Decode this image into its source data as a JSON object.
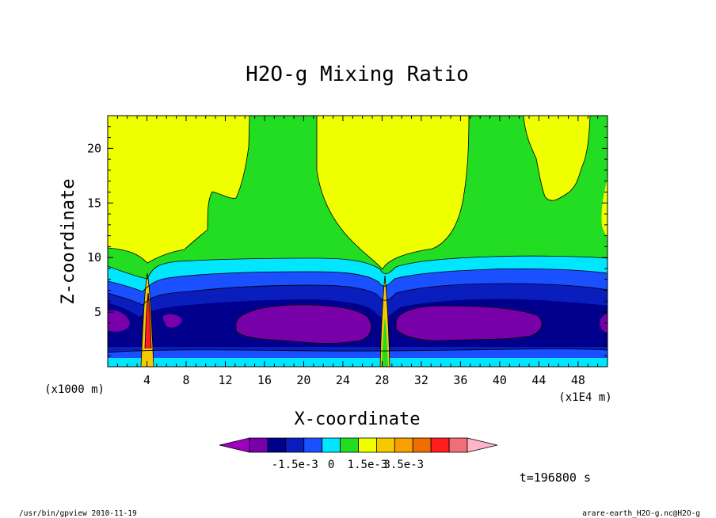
{
  "chart_data": {
    "type": "contour",
    "title": "H2O-g Mixing Ratio",
    "xlabel": "X-coordinate",
    "ylabel": "Z-coordinate",
    "x_unit_left": "(x1000 m)",
    "x_unit_right": "(x1E4 m)",
    "xlim": [
      0,
      51
    ],
    "ylim": [
      0,
      23
    ],
    "x_ticks": [
      4,
      8,
      12,
      16,
      20,
      24,
      28,
      32,
      36,
      40,
      44,
      48
    ],
    "y_ticks": [
      5,
      10,
      15,
      20
    ],
    "colorbar": {
      "colors": [
        "#a000c0",
        "#7800a8",
        "#00008c",
        "#0a1ebe",
        "#1a50ff",
        "#00e6ff",
        "#22dd22",
        "#f0ff00",
        "#f5c800",
        "#f7a000",
        "#f06e00",
        "#ff1e1e",
        "#f06e78",
        "#ffb4c8"
      ],
      "tick_labels": [
        "-1.5e-3",
        "0",
        "1.5e-3",
        "3.5e-3"
      ]
    },
    "time_label": "t=196800 s"
  },
  "footer": {
    "left": "/usr/bin/gpview   2010-11-19",
    "right": "arare-earth_H2O-g.nc@H2O-g"
  }
}
